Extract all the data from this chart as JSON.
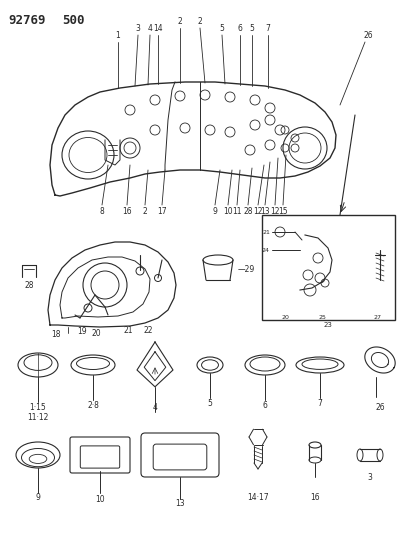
{
  "title": "92769 500",
  "bg_color": "#ffffff",
  "line_color": "#2a2a2a",
  "figsize": [
    4.05,
    5.33
  ],
  "dpi": 100,
  "title_fontsize": 9,
  "label_fontsize": 5.5
}
